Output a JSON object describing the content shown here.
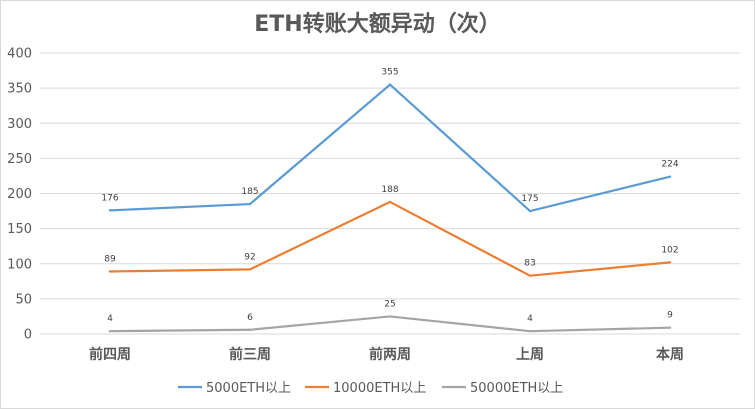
{
  "chart_data": {
    "type": "line",
    "title": "ETH转账大额异动（次）",
    "xlabel": "",
    "ylabel": "",
    "categories": [
      "前四周",
      "前三周",
      "前两周",
      "上周",
      "本周"
    ],
    "ylim": [
      0,
      400
    ],
    "yticks": [
      "0",
      "50",
      "100",
      "150",
      "200",
      "250",
      "300",
      "350",
      "400"
    ],
    "grid": true,
    "legend": "bottom",
    "series": [
      {
        "name": "5000ETH以上",
        "color": "#5b9bd5",
        "values": [
          176,
          185,
          355,
          175,
          224
        ]
      },
      {
        "name": "10000ETH以上",
        "color": "#ed7d31",
        "values": [
          89,
          92,
          188,
          83,
          102
        ]
      },
      {
        "name": "50000ETH以上",
        "color": "#a5a5a5",
        "values": [
          4,
          6,
          25,
          4,
          9
        ]
      }
    ]
  }
}
